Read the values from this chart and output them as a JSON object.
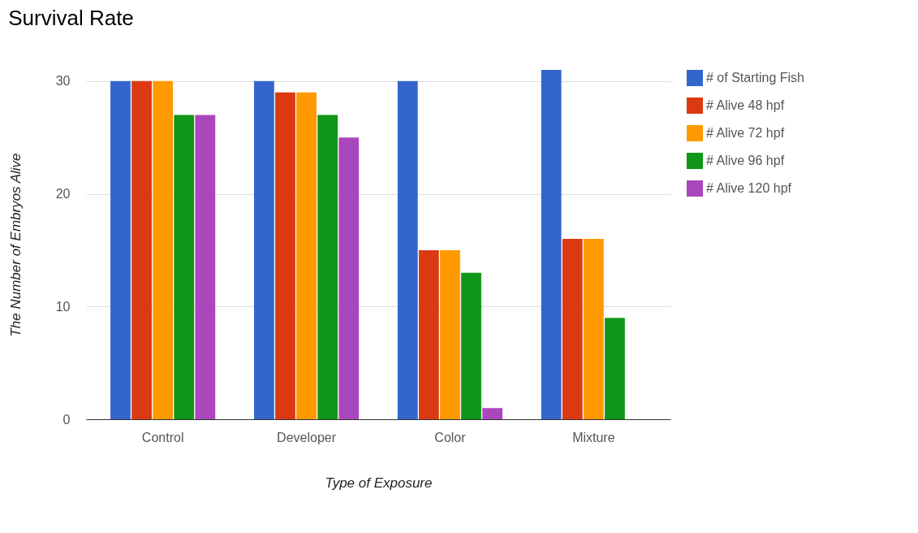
{
  "chart_data": {
    "type": "bar",
    "title": "Survival Rate",
    "xlabel": "Type of Exposure",
    "ylabel": "The Number of Embryos Alive",
    "categories": [
      "Control",
      "Developer",
      "Color",
      "Mixture"
    ],
    "series": [
      {
        "name": "# of Starting Fish",
        "color": "#3366cc",
        "values": [
          30,
          30,
          30,
          31
        ]
      },
      {
        "name": "# Alive 48 hpf",
        "color": "#dc3912",
        "values": [
          30,
          29,
          15,
          16
        ]
      },
      {
        "name": "# Alive 72 hpf",
        "color": "#ff9900",
        "values": [
          30,
          29,
          15,
          16
        ]
      },
      {
        "name": "# Alive 96 hpf",
        "color": "#109618",
        "values": [
          27,
          27,
          13,
          9
        ]
      },
      {
        "name": "# Alive 120 hpf",
        "color": "#ab47bc",
        "values": [
          27,
          25,
          1,
          0
        ]
      }
    ],
    "ylim": [
      0,
      31
    ],
    "yticks": [
      0,
      10,
      20,
      30
    ],
    "grid": "y",
    "legend": "right"
  }
}
